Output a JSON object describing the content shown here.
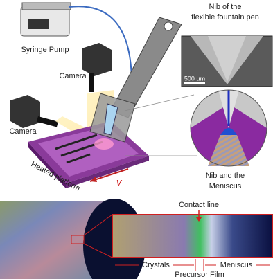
{
  "labels": {
    "syringe_pump": "Syringe Pump",
    "camera_top": "Camera",
    "camera_left": "Camera",
    "nib_inset": [
      "Nib of the",
      "flexible fountain pen"
    ],
    "scale_bar": "500 μm",
    "meniscus_inset": [
      "Nib and the",
      "Meniscus"
    ],
    "platform": "Heated platform",
    "velocity": "v",
    "contact_line": "Contact line",
    "crystals": "Crystals",
    "meniscus": "Meniscus",
    "precursor_film": "Precursor Film"
  }
}
